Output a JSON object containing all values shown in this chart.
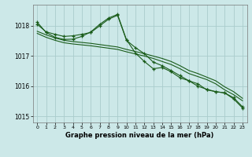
{
  "bg_color": "#cce8e8",
  "grid_color": "#aacccc",
  "line_color": "#1a5c1a",
  "xlabel": "Graphe pression niveau de la mer (hPa)",
  "ylim": [
    1014.8,
    1018.7
  ],
  "xlim": [
    -0.5,
    23.5
  ],
  "yticks": [
    1015,
    1016,
    1017,
    1018
  ],
  "xticks": [
    0,
    1,
    2,
    3,
    4,
    5,
    6,
    7,
    8,
    9,
    10,
    11,
    12,
    13,
    14,
    15,
    16,
    17,
    18,
    19,
    20,
    21,
    22,
    23
  ],
  "series": [
    [
      1018.05,
      1017.8,
      1017.72,
      1017.65,
      1017.67,
      1017.72,
      1017.78,
      1018.0,
      1018.22,
      1018.35,
      1017.52,
      1017.28,
      1017.08,
      1016.8,
      1016.68,
      1016.52,
      1016.35,
      1016.18,
      1016.0,
      1015.9,
      1015.82,
      1015.78,
      1015.62,
      1015.32
    ],
    [
      1017.82,
      1017.7,
      1017.6,
      1017.52,
      1017.48,
      1017.45,
      1017.42,
      1017.38,
      1017.34,
      1017.3,
      1017.22,
      1017.15,
      1017.08,
      1017.0,
      1016.92,
      1016.82,
      1016.68,
      1016.52,
      1016.42,
      1016.3,
      1016.18,
      1015.98,
      1015.82,
      1015.6
    ],
    [
      1017.75,
      1017.62,
      1017.52,
      1017.44,
      1017.4,
      1017.37,
      1017.34,
      1017.3,
      1017.26,
      1017.22,
      1017.14,
      1017.07,
      1017.0,
      1016.92,
      1016.82,
      1016.72,
      1016.58,
      1016.42,
      1016.32,
      1016.22,
      1016.08,
      1015.88,
      1015.72,
      1015.52
    ],
    [
      1018.12,
      1017.78,
      1017.62,
      1017.55,
      1017.56,
      1017.65,
      1017.8,
      1018.05,
      1018.26,
      1018.38,
      1017.54,
      1017.1,
      1016.82,
      1016.58,
      1016.62,
      1016.48,
      1016.28,
      1016.18,
      1016.08,
      1015.88,
      1015.82,
      1015.78,
      1015.58,
      1015.28
    ]
  ],
  "show_markers": [
    true,
    false,
    false,
    true
  ],
  "lw_markers": 0.8,
  "lw_plain": 0.8,
  "markersize": 3.5,
  "markeredgewidth": 0.9
}
